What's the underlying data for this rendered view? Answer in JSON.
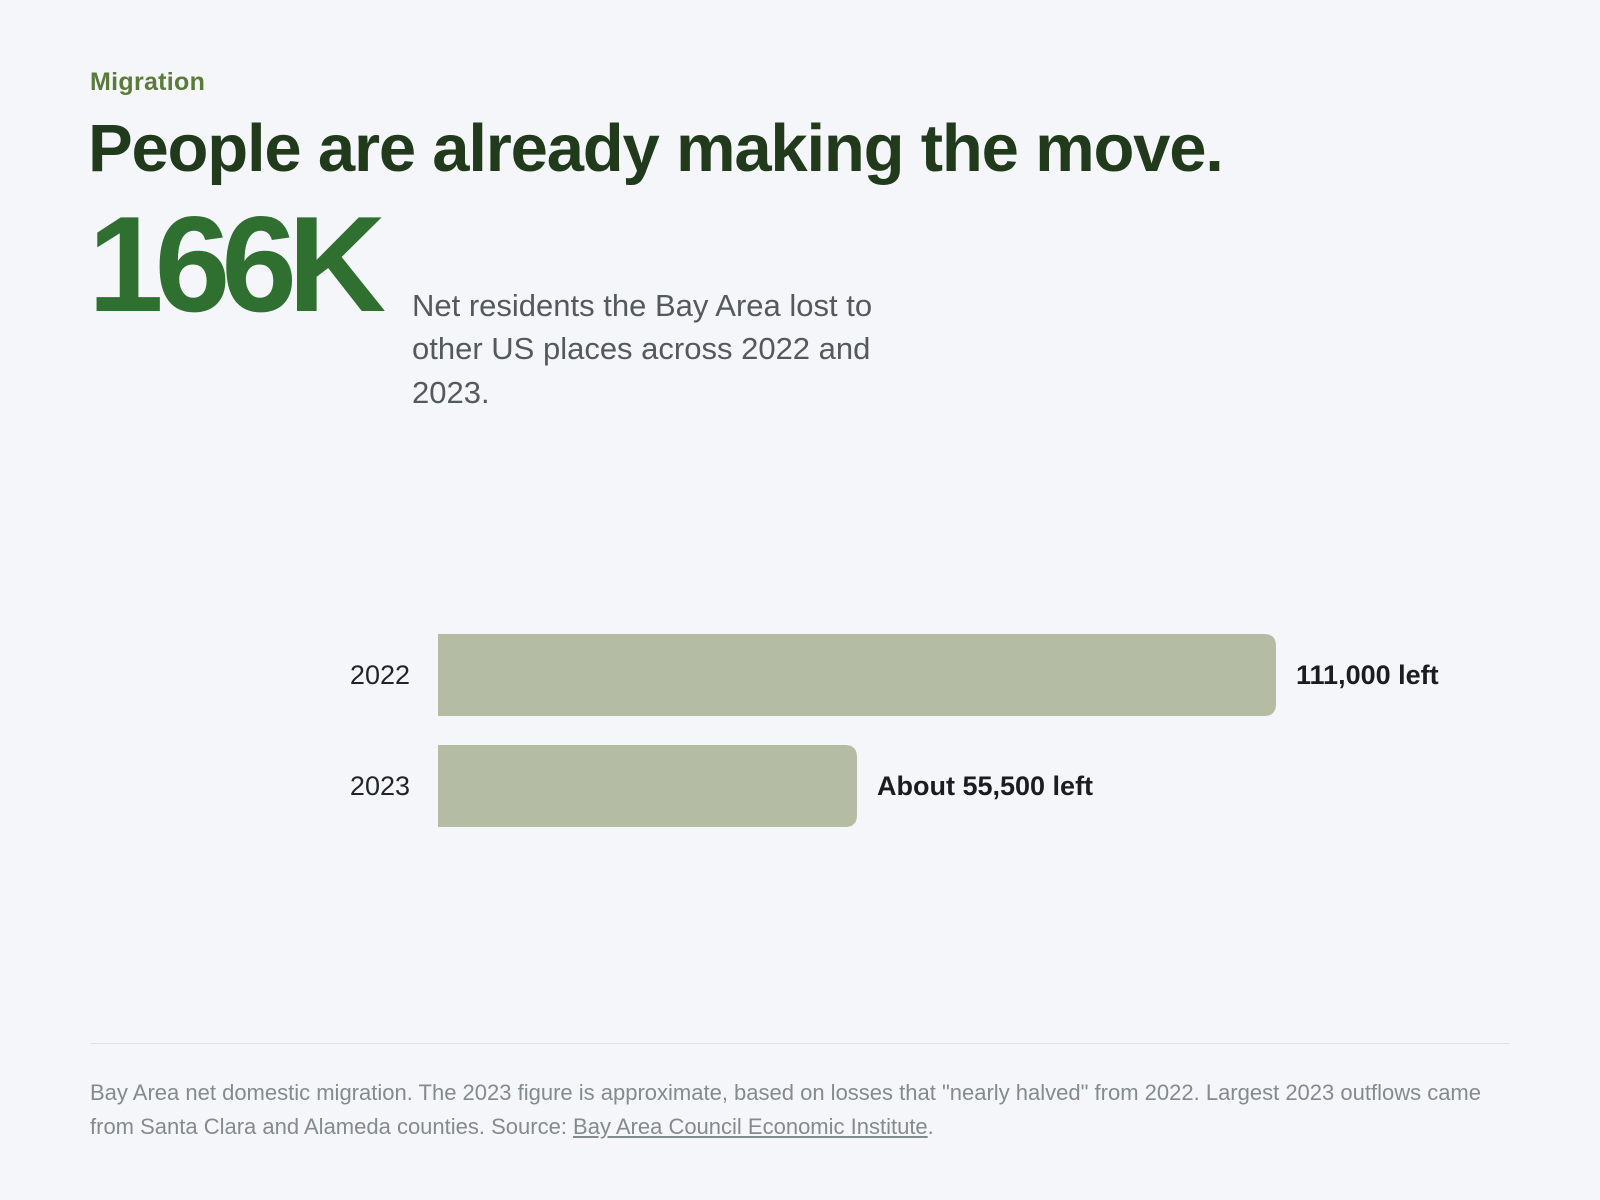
{
  "header": {
    "eyebrow": "Migration",
    "headline": "People are already making the move."
  },
  "stat": {
    "value": "166K",
    "caption": "Net residents the Bay Area lost to other US places across 2022 and 2023."
  },
  "chart_data": {
    "type": "bar",
    "orientation": "horizontal",
    "categories": [
      "2022",
      "2023"
    ],
    "values": [
      111000,
      55500
    ],
    "data_labels": [
      "111,000 left",
      "About 55,500 left"
    ],
    "xlim": [
      0,
      111000
    ],
    "grid": false,
    "bar_color": "#b4bca4"
  },
  "footer": {
    "note": "Bay Area net domestic migration. The 2023 figure is approximate, based on losses that \"nearly halved\" from 2022. Largest 2023 outflows came from Santa Clara and Alameda counties. Source: ",
    "source_link": "Bay Area Council Economic Institute",
    "end": "."
  }
}
